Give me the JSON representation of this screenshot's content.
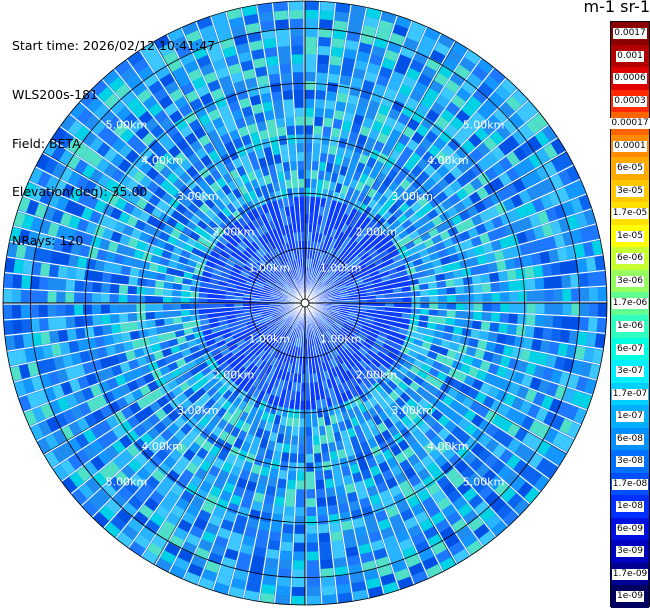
{
  "header": {
    "start_time": "Start time: 2026/02/12 10:41:47",
    "instrument": "WLS200s-181",
    "field": "Field: BETA",
    "elevation": "Elevation(deg): 35.00",
    "nrays": "NRays: 120"
  },
  "colorbar": {
    "title": "m-1 sr-1",
    "labels": [
      "0.0017",
      "0.001",
      "0.0006",
      "0.0003",
      "0.00017",
      "0.0001",
      "6e-05",
      "3e-05",
      "1.7e-05",
      "1e-05",
      "6e-06",
      "3e-06",
      "1.7e-06",
      "1e-06",
      "6e-07",
      "3e-07",
      "1.7e-07",
      "1e-07",
      "6e-08",
      "3e-08",
      "1.7e-08",
      "1e-08",
      "6e-09",
      "3e-09",
      "1.7e-09",
      "1e-09"
    ],
    "colors": [
      "#8b0000",
      "#b30000",
      "#e00000",
      "#ff2a00",
      "#ff6400",
      "#ff8c00",
      "#ffaa00",
      "#ffc800",
      "#ffe000",
      "#ffff00",
      "#c8ff30",
      "#96ff60",
      "#60ff90",
      "#30ffc0",
      "#00ffe0",
      "#00f0ff",
      "#00d0ff",
      "#00b0ff",
      "#0090ff",
      "#0070ff",
      "#0050ff",
      "#0030ff",
      "#0010e0",
      "#0000c0",
      "#000090",
      "#000060"
    ]
  },
  "ppi": {
    "range_unit": "km",
    "range_labels": [
      "1.00km",
      "2.00km",
      "3.00km",
      "4.00km",
      "5.00km"
    ],
    "range_rings_km": [
      1,
      2,
      3,
      4,
      5
    ],
    "n_rays": 120,
    "max_range_km": 5.5,
    "palette": [
      "#1e78ff",
      "#1496ff",
      "#0a64f0",
      "#28b4ff",
      "#0050e6",
      "#3cc8ff",
      "#1e8cf0",
      "#00d2e6",
      "#50e0c8"
    ]
  }
}
